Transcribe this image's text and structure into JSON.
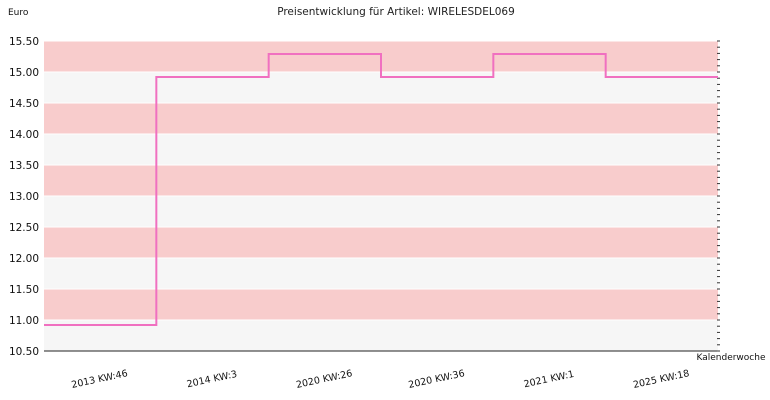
{
  "chart_data": {
    "type": "line",
    "step": true,
    "title": "Preisentwicklung für Artikel: WIRELESDEL069",
    "ylabel": "Euro",
    "xlabel": "Kalenderwoche",
    "ylim": [
      10.5,
      15.5
    ],
    "yticks": [
      "15.50",
      "15.00",
      "14.50",
      "14.00",
      "13.50",
      "13.00",
      "12.50",
      "12.00",
      "11.50",
      "11.00",
      "10.50"
    ],
    "categories": [
      "2013 KW:46",
      "2014 KW:3",
      "2020 KW:26",
      "2020 KW:36",
      "2021 KW:1",
      "2025 KW:18"
    ],
    "series": [
      {
        "values": [
          10.92,
          14.92,
          15.29,
          14.92,
          15.29,
          14.92
        ]
      }
    ],
    "colors": {
      "line": "#f070c0",
      "band_dark": "#f8cccc",
      "band_light": "#f6f6f6",
      "axis": "#222222"
    },
    "grid": true,
    "legend": "none"
  }
}
